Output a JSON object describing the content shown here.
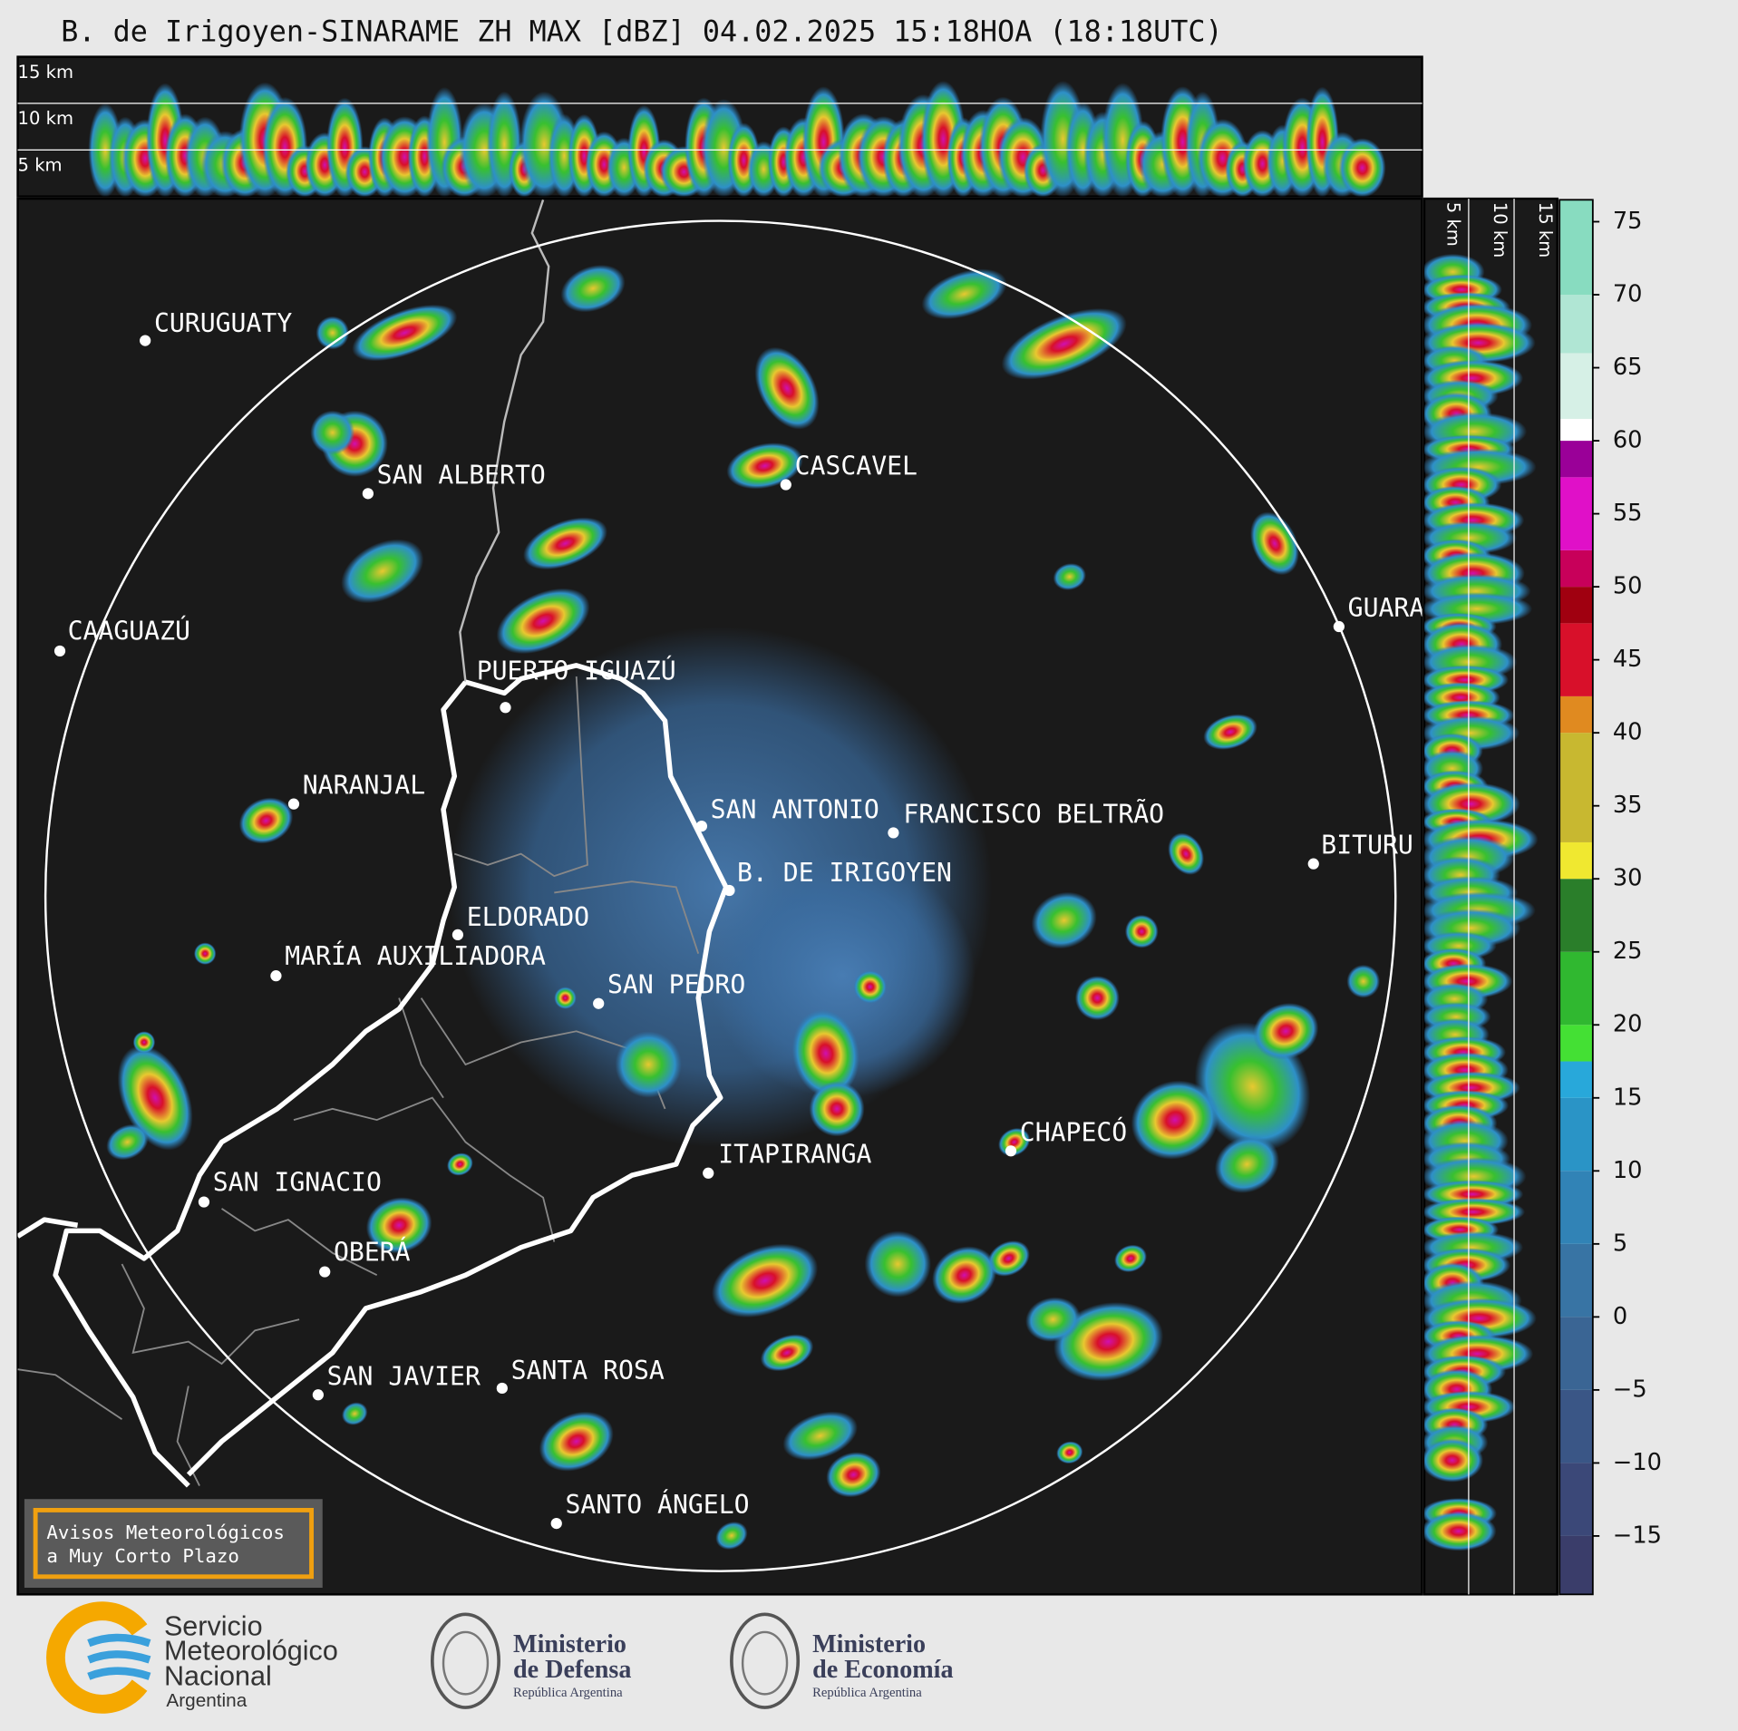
{
  "title": "B. de Irigoyen-SINARAME ZH MAX [dBZ] 04.02.2025 15:18HOA (18:18UTC)",
  "top_panel": {
    "labels": [
      "15 km",
      "10 km",
      "5 km"
    ]
  },
  "side_panel": {
    "labels": [
      "5 km",
      "10 km",
      "15 km"
    ]
  },
  "cities": [
    "CURUGUATY",
    "SAN ALBERTO",
    "CAAGUAZÚ",
    "PUERTO IGUAZÚ",
    "CASCAVEL",
    "GUARA",
    "NARANJAL",
    "SAN ANTONIO",
    "FRANCISCO BELTRÃO",
    "B. DE IRIGOYEN",
    "BITURU",
    "ELDORADO",
    "MARÍA AUXILIADORA",
    "SAN PEDRO",
    "ITAPIRANGA",
    "CHAPECÓ",
    "SAN IGNACIO",
    "OBERÁ",
    "SAN JAVIER",
    "SANTA ROSA",
    "SANTO ÁNGELO"
  ],
  "colorbar": {
    "lim": [
      -19,
      76.5
    ],
    "ticks": [
      75,
      70,
      65,
      60,
      55,
      50,
      45,
      40,
      35,
      30,
      25,
      20,
      15,
      10,
      5,
      0,
      {
        "value": -5,
        "label": "−5"
      },
      {
        "value": -10,
        "label": "−10"
      },
      {
        "value": -15,
        "label": "−15"
      }
    ],
    "bands": [
      {
        "from": -19,
        "to": -15,
        "color": "#3a3d6a"
      },
      {
        "from": -15,
        "to": -10,
        "color": "#3b4878"
      },
      {
        "from": -10,
        "to": -5,
        "color": "#3a5686"
      },
      {
        "from": -5,
        "to": 0,
        "color": "#3a6594"
      },
      {
        "from": 0,
        "to": 5,
        "color": "#3874a4"
      },
      {
        "from": 5,
        "to": 10,
        "color": "#3183b6"
      },
      {
        "from": 10,
        "to": 15,
        "color": "#2a94c6"
      },
      {
        "from": 15,
        "to": 17.5,
        "color": "#28a8da"
      },
      {
        "from": 17.5,
        "to": 20,
        "color": "#44e034"
      },
      {
        "from": 20,
        "to": 25,
        "color": "#30b830"
      },
      {
        "from": 25,
        "to": 30,
        "color": "#2a7e2a"
      },
      {
        "from": 30,
        "to": 32.5,
        "color": "#f0e830"
      },
      {
        "from": 32.5,
        "to": 40,
        "color": "#c8b830"
      },
      {
        "from": 40,
        "to": 42.5,
        "color": "#e08a20"
      },
      {
        "from": 42.5,
        "to": 47.5,
        "color": "#d8102a"
      },
      {
        "from": 47.5,
        "to": 50,
        "color": "#a00010"
      },
      {
        "from": 50,
        "to": 52.5,
        "color": "#c8005a"
      },
      {
        "from": 52.5,
        "to": 57.5,
        "color": "#e010c8"
      },
      {
        "from": 57.5,
        "to": 60,
        "color": "#9a0098"
      },
      {
        "from": 60,
        "to": 61.5,
        "color": "#ffffff"
      },
      {
        "from": 61.5,
        "to": 66,
        "color": "#d6f0e6"
      },
      {
        "from": 66,
        "to": 70,
        "color": "#b0e6d4"
      },
      {
        "from": 70,
        "to": 76.5,
        "color": "#88dcc0"
      }
    ]
  },
  "notice": [
    "Avisos Meteorológicos",
    "a Muy Corto Plazo"
  ],
  "footer": {
    "smn": [
      "Servicio",
      "Meteorológico",
      "Nacional",
      "Argentina"
    ],
    "defensa": [
      "Ministerio",
      "de Defensa",
      "República Argentina"
    ],
    "economia": [
      "Ministerio",
      "de Economía",
      "República Argentina"
    ]
  }
}
